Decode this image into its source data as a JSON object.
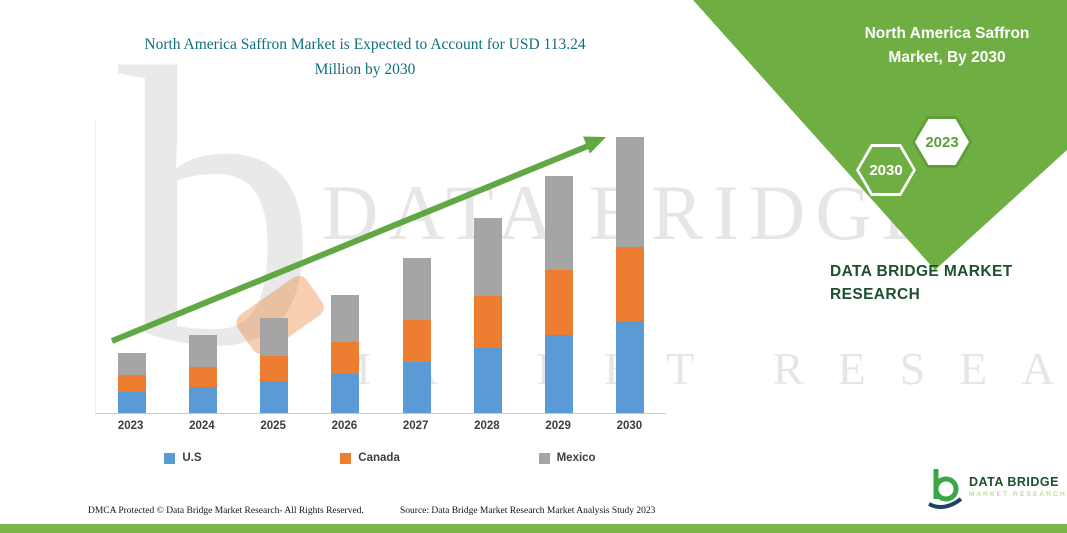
{
  "header": {
    "chart_title": "North America Saffron Market is Expected to Account for USD 113.24 Million by 2030"
  },
  "side_panel": {
    "title": "North America Saffron Market, By 2030",
    "hexagon_left": "2030",
    "hexagon_right": "2023",
    "brand_line": "DATA BRIDGE MARKET RESEARCH"
  },
  "chart_data": {
    "type": "bar",
    "stacked": true,
    "title": "North America Saffron Market is Expected to Account for USD 113.24 Million by 2030",
    "unit": "USD Million",
    "categories": [
      "2023",
      "2024",
      "2025",
      "2026",
      "2027",
      "2028",
      "2029",
      "2030"
    ],
    "series": [
      {
        "name": "U.S",
        "color": "#5B9BD5",
        "values": [
          8.5,
          10.5,
          13.0,
          16.0,
          21.0,
          26.5,
          32.0,
          37.5
        ]
      },
      {
        "name": "Canada",
        "color": "#ED7D31",
        "values": [
          7.0,
          8.5,
          10.5,
          13.0,
          17.0,
          21.5,
          26.5,
          30.5
        ]
      },
      {
        "name": "Mexico",
        "color": "#A5A5A5",
        "values": [
          9.0,
          13.0,
          15.5,
          19.5,
          25.5,
          32.0,
          38.5,
          45.24
        ]
      }
    ],
    "totals": [
      24.5,
      32.0,
      39.0,
      48.5,
      63.5,
      80.0,
      97.0,
      113.24
    ],
    "ylim": [
      0,
      120
    ],
    "grid": false,
    "legend_position": "bottom",
    "annotations": [
      "upward trend arrow across bars"
    ]
  },
  "watermark": {
    "brand": "DATA BRIDGE",
    "tagline": "MARKET RESEARCH",
    "letter_b": "b"
  },
  "footer": {
    "left": "DMCA Protected © Data Bridge Market Research-  All Rights Reserved.",
    "right": "Source: Data Bridge Market Research  Market Analysis Study 2023"
  },
  "logo": {
    "title": "DATA BRIDGE",
    "subtitle": "MARKET RESEARCH"
  },
  "colors": {
    "band_green": "#6fae43",
    "arrow_green": "#61a744",
    "title_teal": "#10707e",
    "dark_green": "#1e4f2f",
    "bottom_bar_green": "#7ab648"
  }
}
